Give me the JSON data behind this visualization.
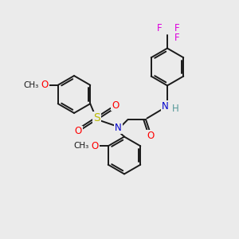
{
  "bg_color": "#ebebeb",
  "bond_color": "#1a1a1a",
  "N_color": "#0000cc",
  "O_color": "#ff0000",
  "S_color": "#bbbb00",
  "F_color": "#dd00dd",
  "H_color": "#559999",
  "lw": 1.4,
  "fig_size": [
    3.0,
    3.0
  ],
  "dpi": 100,
  "xlim": [
    0,
    10
  ],
  "ylim": [
    0,
    10
  ]
}
